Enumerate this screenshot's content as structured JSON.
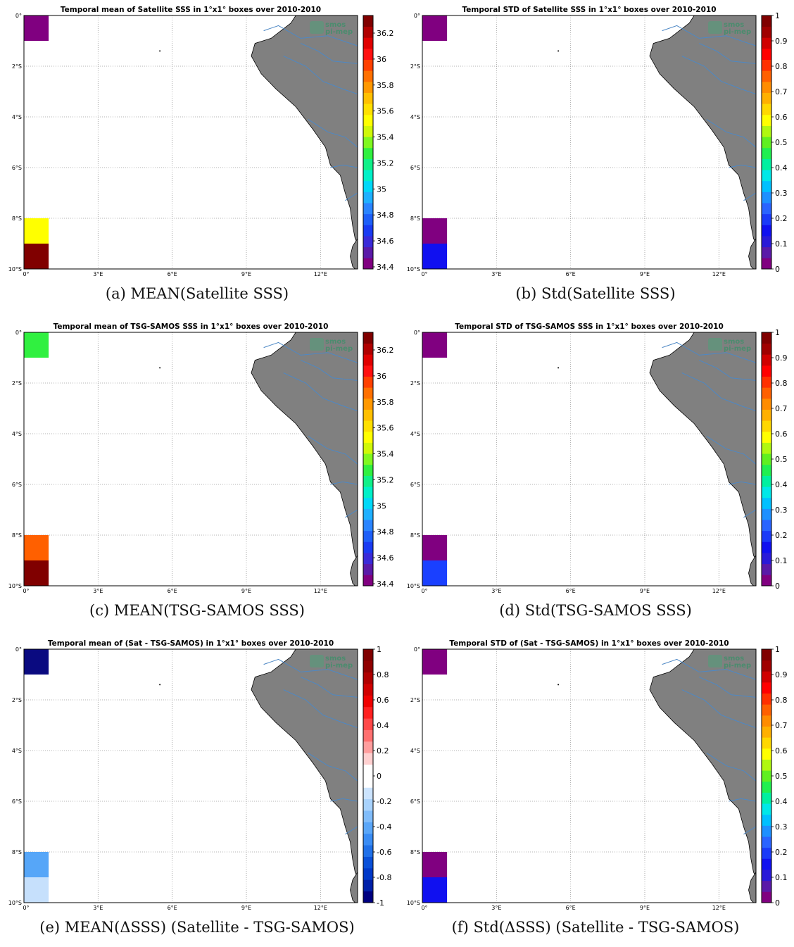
{
  "map": {
    "lon_range": [
      0,
      13.5
    ],
    "lat_range": [
      -10,
      0
    ],
    "lon_ticks": [
      "0°",
      "3°E",
      "6°E",
      "9°E",
      "12°E"
    ],
    "lat_ticks": [
      "0°",
      "2°S",
      "4°S",
      "6°S",
      "8°S",
      "10°S"
    ],
    "land_color": "#808080",
    "river_color": "#4d88c5",
    "grid": "dotted",
    "logo_text": [
      "smos",
      "pi-mep"
    ]
  },
  "panels": [
    {
      "id": "a",
      "title": "Temporal mean of Satellite SSS in 1°x1° boxes over 2010-2010",
      "caption": "(a) MEAN(Satellite SSS)",
      "cells": [
        {
          "lon": 0,
          "lat": 0,
          "color": "#800080"
        },
        {
          "lon": 0,
          "lat": -8,
          "color": "#ffff00"
        },
        {
          "lon": 0,
          "lat": -9,
          "color": "#800000"
        }
      ],
      "colorbar": {
        "colors": [
          "#800080",
          "#5a1aa8",
          "#3a2ad8",
          "#1a3bf2",
          "#1e5ff8",
          "#2a84ff",
          "#1fb0ff",
          "#00d8f8",
          "#00f0c8",
          "#10f088",
          "#30f040",
          "#80f820",
          "#d0f808",
          "#ffff00",
          "#ffe000",
          "#ffc000",
          "#ff9800",
          "#ff7000",
          "#ff4000",
          "#ff1010",
          "#e00000",
          "#b00000",
          "#800000"
        ],
        "ticks": [
          "34.4",
          "34.6",
          "34.8",
          "35",
          "35.2",
          "35.4",
          "35.6",
          "35.8",
          "36",
          "36.2"
        ]
      }
    },
    {
      "id": "b",
      "title": "Temporal STD of Satellite SSS in 1°x1° boxes over 2010-2010",
      "caption": "(b) Std(Satellite SSS)",
      "cells": [
        {
          "lon": 0,
          "lat": 0,
          "color": "#800080"
        },
        {
          "lon": 0,
          "lat": -8,
          "color": "#800080"
        },
        {
          "lon": 0,
          "lat": -9,
          "color": "#1010f0"
        }
      ],
      "colorbar": {
        "colors": [
          "#800080",
          "#5a1aa8",
          "#2a1ad8",
          "#1010f0",
          "#1a3af8",
          "#2a64ff",
          "#1e90ff",
          "#00c0ff",
          "#00e8e8",
          "#00f0a0",
          "#20f050",
          "#60f020",
          "#b0f810",
          "#ffff00",
          "#ffd800",
          "#ffb000",
          "#ff8c00",
          "#ff6000",
          "#ff3000",
          "#ff0000",
          "#d00000",
          "#a00000",
          "#800000"
        ],
        "ticks": [
          "0",
          "0.1",
          "0.2",
          "0.3",
          "0.4",
          "0.5",
          "0.6",
          "0.7",
          "0.8",
          "0.9",
          "1"
        ]
      }
    },
    {
      "id": "c",
      "title": "Temporal mean of TSG-SAMOS SSS in 1°x1° boxes over 2010-2010",
      "caption": "(c) MEAN(TSG-SAMOS SSS)",
      "cells": [
        {
          "lon": 0,
          "lat": 0,
          "color": "#30f040"
        },
        {
          "lon": 0,
          "lat": -8,
          "color": "#ff6000"
        },
        {
          "lon": 0,
          "lat": -9,
          "color": "#800000"
        }
      ],
      "colorbar": {
        "colors": [
          "#800080",
          "#5a1aa8",
          "#3a2ad8",
          "#1a3bf2",
          "#1e5ff8",
          "#2a84ff",
          "#1fb0ff",
          "#00d8f8",
          "#00f0c8",
          "#10f088",
          "#30f040",
          "#80f820",
          "#d0f808",
          "#ffff00",
          "#ffe000",
          "#ffc000",
          "#ff9800",
          "#ff7000",
          "#ff4000",
          "#ff1010",
          "#e00000",
          "#b00000",
          "#800000"
        ],
        "ticks": [
          "34.4",
          "34.6",
          "34.8",
          "35",
          "35.2",
          "35.4",
          "35.6",
          "35.8",
          "36",
          "36.2"
        ]
      }
    },
    {
      "id": "d",
      "title": "Temporal STD of TSG-SAMOS SSS in 1°x1° boxes over 2010-2010",
      "caption": "(d) Std(TSG-SAMOS SSS)",
      "cells": [
        {
          "lon": 0,
          "lat": 0,
          "color": "#800080"
        },
        {
          "lon": 0,
          "lat": -8,
          "color": "#800080"
        },
        {
          "lon": 0,
          "lat": -9,
          "color": "#1a40ff"
        }
      ],
      "colorbar": {
        "colors": [
          "#800080",
          "#5a1aa8",
          "#2a1ad8",
          "#1010f0",
          "#1a3af8",
          "#2a64ff",
          "#1e90ff",
          "#00c0ff",
          "#00e8e8",
          "#00f0a0",
          "#20f050",
          "#60f020",
          "#b0f810",
          "#ffff00",
          "#ffd800",
          "#ffb000",
          "#ff8c00",
          "#ff6000",
          "#ff3000",
          "#ff0000",
          "#d00000",
          "#a00000",
          "#800000"
        ],
        "ticks": [
          "0",
          "0.1",
          "0.2",
          "0.3",
          "0.4",
          "0.5",
          "0.6",
          "0.7",
          "0.8",
          "0.9",
          "1"
        ]
      }
    },
    {
      "id": "e",
      "title": "Temporal mean of (Sat - TSG-SAMOS) in 1°x1° boxes over 2010-2010",
      "caption": "(e) MEAN(ΔSSS) (Satellite - TSG-SAMOS)",
      "cells": [
        {
          "lon": 0,
          "lat": 0,
          "color": "#0a0a80"
        },
        {
          "lon": 0,
          "lat": -8,
          "color": "#56a6f8"
        },
        {
          "lon": 0,
          "lat": -9,
          "color": "#c6e0fc"
        }
      ],
      "colorbar": {
        "colors": [
          "#000080",
          "#0020a8",
          "#0038c8",
          "#0a50d8",
          "#2070e8",
          "#3a8cf4",
          "#5aa6f8",
          "#80bcfa",
          "#a8d2fc",
          "#cce4fe",
          "#ffffff",
          "#ffffff",
          "#ffd0d0",
          "#ff9e9e",
          "#ff7070",
          "#ff4848",
          "#ff2020",
          "#f00000",
          "#d00000",
          "#b00000",
          "#900000",
          "#800000"
        ],
        "ticks": [
          "-1",
          "-0.8",
          "-0.6",
          "-0.4",
          "-0.2",
          "0",
          "0.2",
          "0.4",
          "0.6",
          "0.8",
          "1"
        ]
      }
    },
    {
      "id": "f",
      "title": "Temporal STD of (Sat - TSG-SAMOS) in 1°x1° boxes over 2010-2010",
      "caption": "(f) Std(ΔSSS) (Satellite - TSG-SAMOS)",
      "cells": [
        {
          "lon": 0,
          "lat": 0,
          "color": "#800080"
        },
        {
          "lon": 0,
          "lat": -8,
          "color": "#800080"
        },
        {
          "lon": 0,
          "lat": -9,
          "color": "#1010f0"
        }
      ],
      "colorbar": {
        "colors": [
          "#800080",
          "#5a1aa8",
          "#2a1ad8",
          "#1010f0",
          "#1a3af8",
          "#2a64ff",
          "#1e90ff",
          "#00c0ff",
          "#00e8e8",
          "#00f0a0",
          "#20f050",
          "#60f020",
          "#b0f810",
          "#ffff00",
          "#ffd800",
          "#ffb000",
          "#ff8c00",
          "#ff6000",
          "#ff3000",
          "#ff0000",
          "#d00000",
          "#a00000",
          "#800000"
        ],
        "ticks": [
          "0",
          "0.1",
          "0.2",
          "0.3",
          "0.4",
          "0.5",
          "0.6",
          "0.7",
          "0.8",
          "0.9",
          "1"
        ]
      }
    }
  ]
}
